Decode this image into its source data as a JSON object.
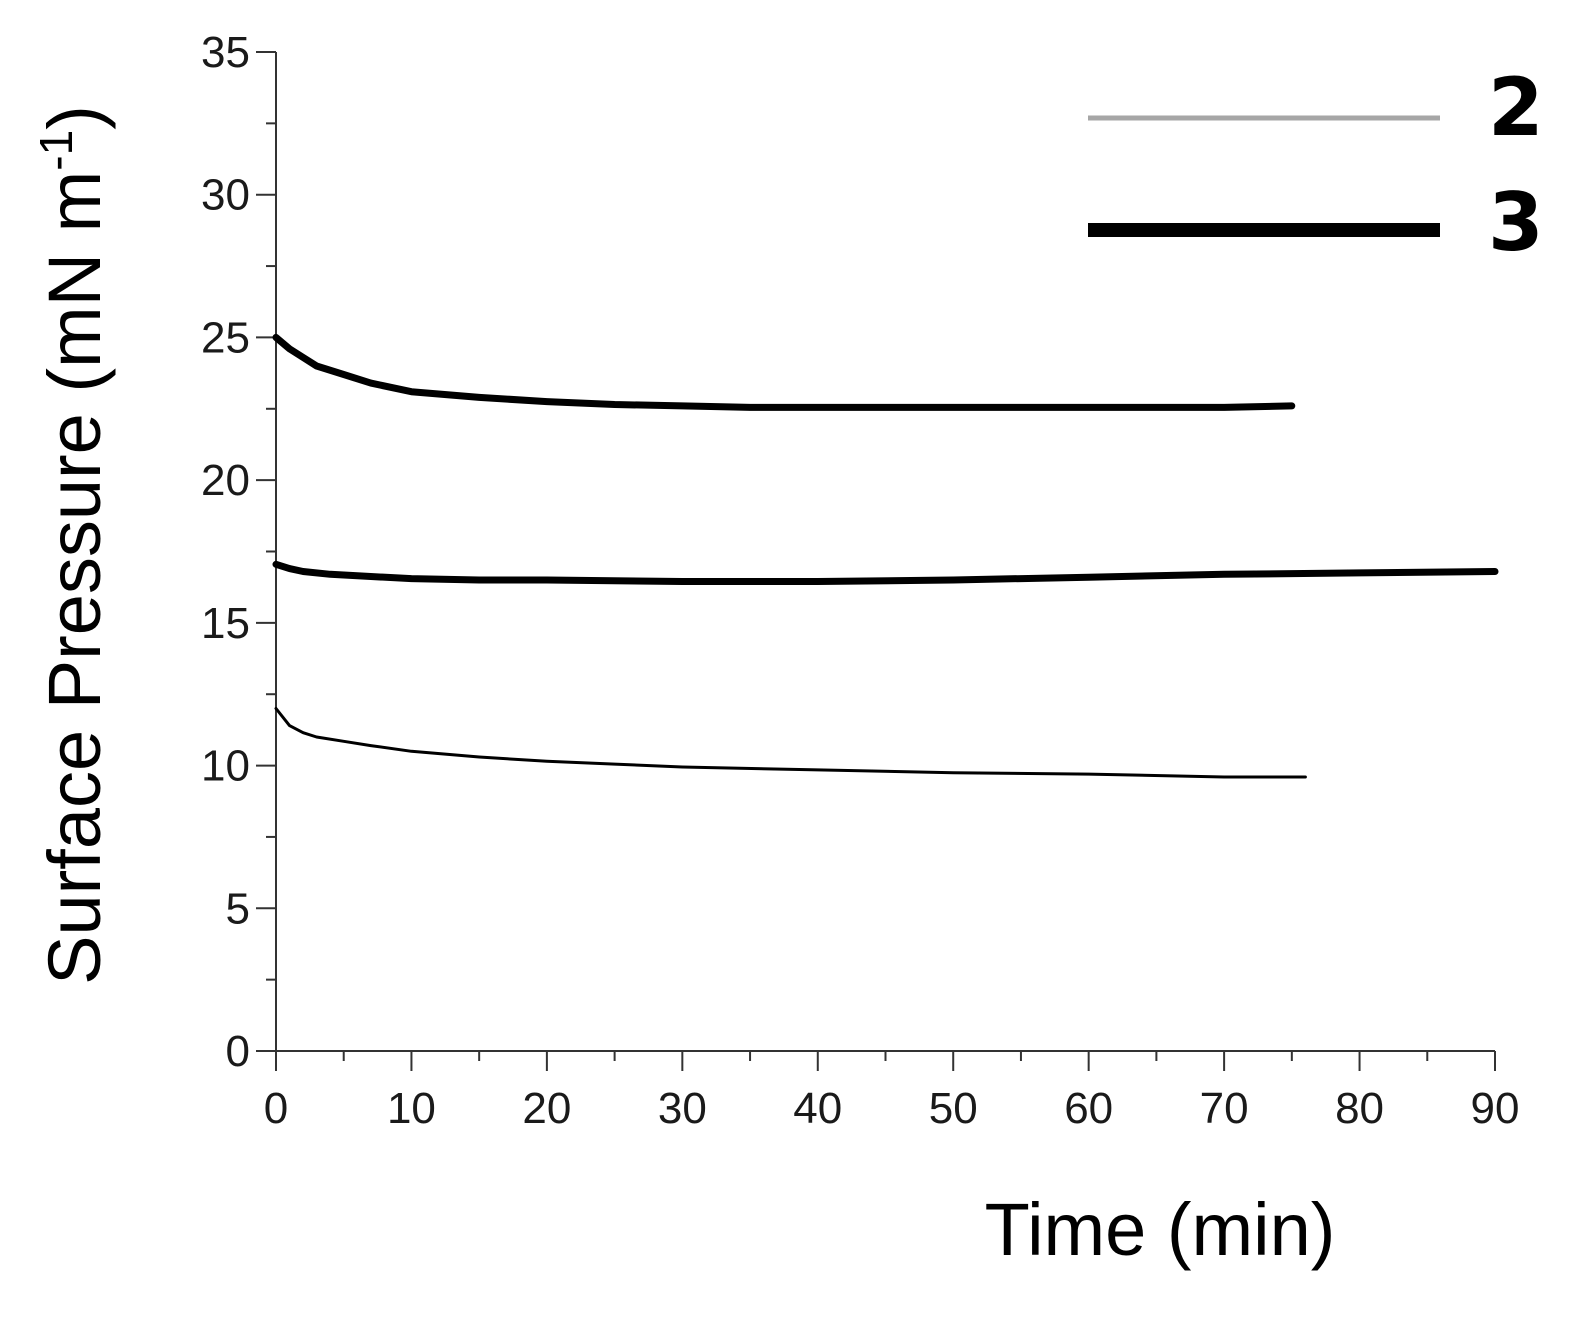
{
  "chart_data": {
    "type": "line",
    "title": "",
    "xlabel": "Time (min)",
    "ylabel": "Surface Pressure (mN m⁻¹)",
    "ylabel_main": "Surface Pressure (mN m",
    "ylabel_sup": "-1",
    "ylabel_close": ")",
    "xlim": [
      0,
      90
    ],
    "ylim": [
      0,
      35
    ],
    "x_ticks": [
      0,
      10,
      20,
      30,
      40,
      50,
      60,
      70,
      80,
      90
    ],
    "y_ticks": [
      0,
      5,
      10,
      15,
      20,
      25,
      30,
      35
    ],
    "x_minor_step": 5,
    "y_minor_step": 2.5,
    "grid": false,
    "legend_position": "top-right",
    "legend": [
      {
        "label": "2",
        "color": "#a6a6a6"
      },
      {
        "label": "3",
        "color": "#000000"
      }
    ],
    "series": [
      {
        "color": "#000000",
        "width": "thick",
        "x": [
          0,
          1,
          2,
          3,
          5,
          7,
          10,
          15,
          20,
          25,
          30,
          35,
          40,
          50,
          60,
          70,
          75
        ],
        "y": [
          25.0,
          24.6,
          24.3,
          24.0,
          23.7,
          23.4,
          23.1,
          22.9,
          22.75,
          22.65,
          22.6,
          22.55,
          22.55,
          22.55,
          22.55,
          22.55,
          22.6
        ]
      },
      {
        "color": "#000000",
        "width": "thick",
        "x": [
          0,
          1,
          2,
          4,
          6,
          10,
          15,
          20,
          30,
          40,
          50,
          60,
          70,
          80,
          90
        ],
        "y": [
          17.05,
          16.9,
          16.8,
          16.7,
          16.65,
          16.55,
          16.5,
          16.5,
          16.45,
          16.45,
          16.5,
          16.6,
          16.7,
          16.75,
          16.8
        ]
      },
      {
        "color": "#000000",
        "width": "thin",
        "x": [
          0,
          1,
          2,
          3,
          5,
          7,
          10,
          15,
          20,
          25,
          30,
          40,
          50,
          60,
          70,
          76
        ],
        "y": [
          12.0,
          11.4,
          11.15,
          11.0,
          10.85,
          10.7,
          10.5,
          10.3,
          10.15,
          10.05,
          9.95,
          9.85,
          9.75,
          9.7,
          9.6,
          9.6
        ]
      }
    ]
  }
}
